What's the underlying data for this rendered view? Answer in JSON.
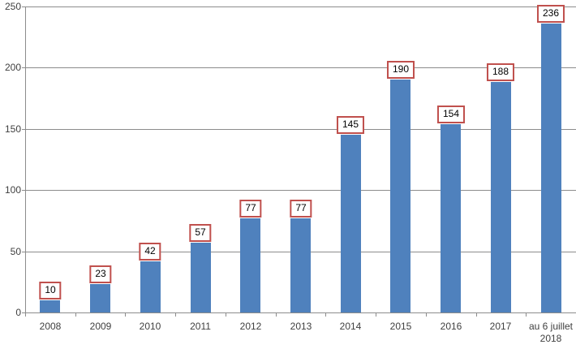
{
  "chart_data": {
    "type": "bar",
    "categories": [
      "2008",
      "2009",
      "2010",
      "2011",
      "2012",
      "2013",
      "2014",
      "2015",
      "2016",
      "2017",
      "au 6 juillet 2018"
    ],
    "values": [
      10,
      23,
      42,
      57,
      77,
      77,
      145,
      190,
      154,
      188,
      236
    ],
    "data_labels": [
      "10",
      "23",
      "42",
      "57",
      "77",
      "77",
      "145",
      "190",
      "154",
      "188",
      "236"
    ],
    "title": "",
    "xlabel": "",
    "ylabel": "",
    "ylim": [
      0,
      250
    ],
    "yticks": [
      0,
      50,
      100,
      150,
      200,
      250
    ],
    "ytick_labels": [
      "0",
      "50",
      "100",
      "150",
      "200",
      "250"
    ],
    "grid": true,
    "legend": false,
    "colors": {
      "bar_fill": "#4f81bd",
      "data_label_border": "#c0504d",
      "data_label_bg": "#ffffff",
      "data_label_text": "#000000",
      "gridline": "#8c8c8c",
      "axis_line": "#8c8c8c",
      "axis_text": "#3f3f3f"
    }
  }
}
